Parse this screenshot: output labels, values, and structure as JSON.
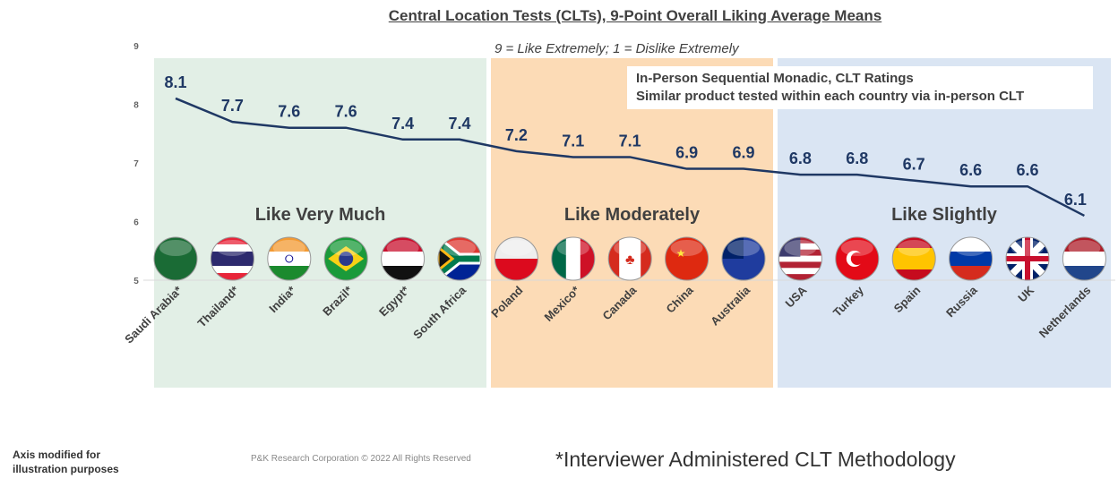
{
  "chart_data": {
    "type": "line",
    "title": "Central Location Tests (CLTs), 9-Point Overall Liking Average Means",
    "subtitle": "9 = Like Extremely; 1 = Dislike Extremely",
    "categories": [
      "Saudi Arabia*",
      "Thailand*",
      "India*",
      "Brazil*",
      "Egypt*",
      "South Africa",
      "Poland",
      "Mexico*",
      "Canada",
      "China",
      "Australia",
      "USA",
      "Turkey",
      "Spain",
      "Russia",
      "UK",
      "Netherlands"
    ],
    "values": [
      8.1,
      7.7,
      7.6,
      7.6,
      7.4,
      7.4,
      7.2,
      7.1,
      7.1,
      6.9,
      6.9,
      6.8,
      6.8,
      6.7,
      6.6,
      6.6,
      6.1
    ],
    "ylim": [
      5,
      9
    ],
    "yticks": [
      5,
      6,
      7,
      8,
      9
    ],
    "grid": false,
    "line_color": "#1F3864",
    "regions": [
      {
        "label": "Like Very Much",
        "from": 0,
        "to": 5,
        "color": "#E2EFE6"
      },
      {
        "label": "Like Moderately",
        "from": 6,
        "to": 10,
        "color": "#FCDBB6"
      },
      {
        "label": "Like Slightly",
        "from": 11,
        "to": 16,
        "color": "#DAE5F3"
      }
    ],
    "annotation": [
      "In-Person Sequential Monadic, CLT Ratings",
      "Similar product tested within each country via in-person CLT"
    ]
  },
  "footer": {
    "axis_note": [
      "Axis modified for",
      "illustration purposes"
    ],
    "copyright": "P&K Research Corporation © 2022 All Rights Reserved",
    "footnote": "*Interviewer Administered CLT Methodology"
  }
}
